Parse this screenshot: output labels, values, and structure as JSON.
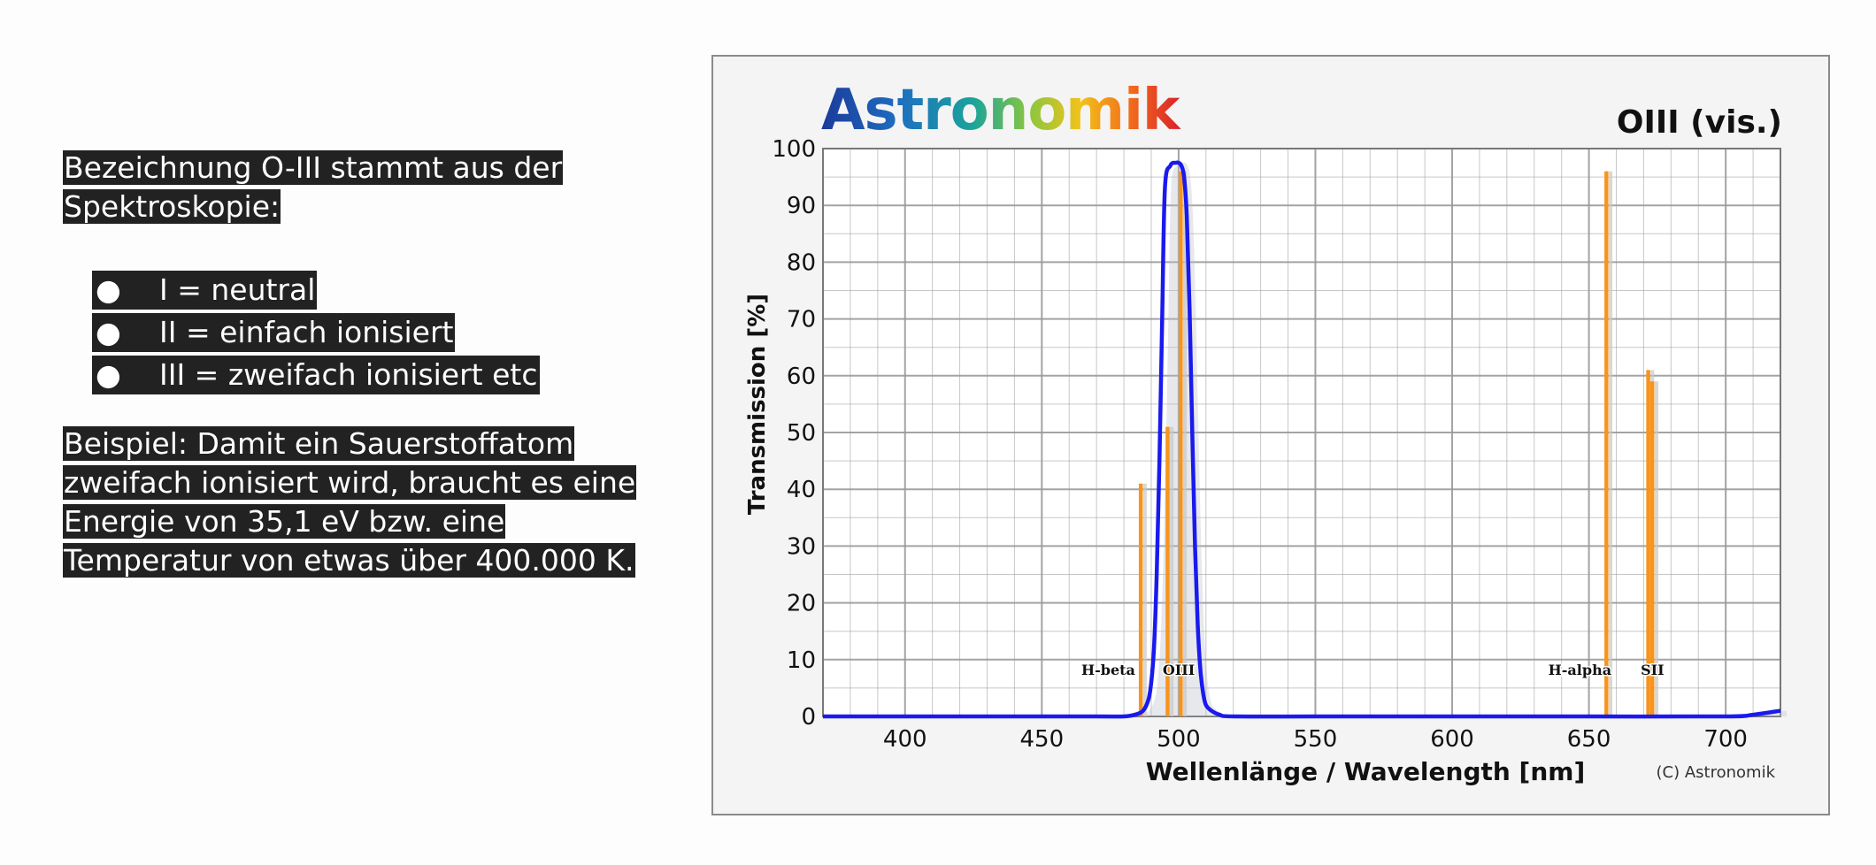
{
  "text_panel": {
    "intro_line1": "Bezeichnung O-III stammt aus der",
    "intro_line2": "Spektroskopie:",
    "bullets": [
      {
        "marker": "●",
        "text": "I = neutral"
      },
      {
        "marker": "●",
        "text": "II = einfach ionisiert"
      },
      {
        "marker": "●",
        "text": "III = zweifach ionisiert etc"
      }
    ],
    "example_lines": [
      "Beispiel: Damit ein Sauerstoffatom",
      "zweifach ionisiert wird, braucht es eine",
      "Energie von 35,1 eV bzw. eine",
      "Temperatur von etwas über 400.000 K."
    ]
  },
  "chart_data": {
    "type": "line",
    "logo": "Astronomik",
    "title": "OIII (vis.)",
    "xlabel": "Wellenlänge / Wavelength [nm]",
    "ylabel": "Transmission [%]",
    "xlim": [
      370,
      720
    ],
    "ylim": [
      0,
      100
    ],
    "x_ticks": [
      400,
      450,
      500,
      550,
      600,
      650,
      700
    ],
    "y_ticks": [
      0,
      10,
      20,
      30,
      40,
      50,
      60,
      70,
      80,
      90,
      100
    ],
    "grid": true,
    "copyright": "(C) Astronomik",
    "colors": {
      "filter_curve": "#1a1aee",
      "emission_lines": "#f7941d",
      "grid": "#9a9a9a",
      "plot_bg": "#ffffff"
    },
    "series": [
      {
        "name": "",
        "x": [
          370,
          420,
          470,
          480,
          484,
          487,
          489,
          490,
          491,
          492,
          493,
          494,
          495,
          497,
          499,
          500,
          501,
          502,
          503,
          504,
          505,
          506,
          507,
          508,
          509,
          510,
          512,
          515,
          520,
          550,
          600,
          650,
          700,
          710,
          720
        ],
        "y": [
          0,
          0,
          0,
          0,
          0.3,
          1,
          3,
          6,
          12,
          25,
          45,
          70,
          93,
          97,
          97.5,
          97.5,
          97,
          95,
          88,
          72,
          50,
          30,
          16,
          8,
          4,
          2,
          1,
          0.3,
          0,
          0,
          0,
          0,
          0,
          0.3,
          1
        ]
      }
    ],
    "emission_lines": [
      {
        "x": 486.1,
        "y": 41,
        "label": "H-beta"
      },
      {
        "x": 495.9,
        "y": 51,
        "label": ""
      },
      {
        "x": 500.7,
        "y": 96,
        "label": "OIII"
      },
      {
        "x": 656.3,
        "y": 96,
        "label": "H-alpha"
      },
      {
        "x": 671.6,
        "y": 61,
        "label": "SII"
      },
      {
        "x": 673.1,
        "y": 59,
        "label": ""
      }
    ]
  }
}
